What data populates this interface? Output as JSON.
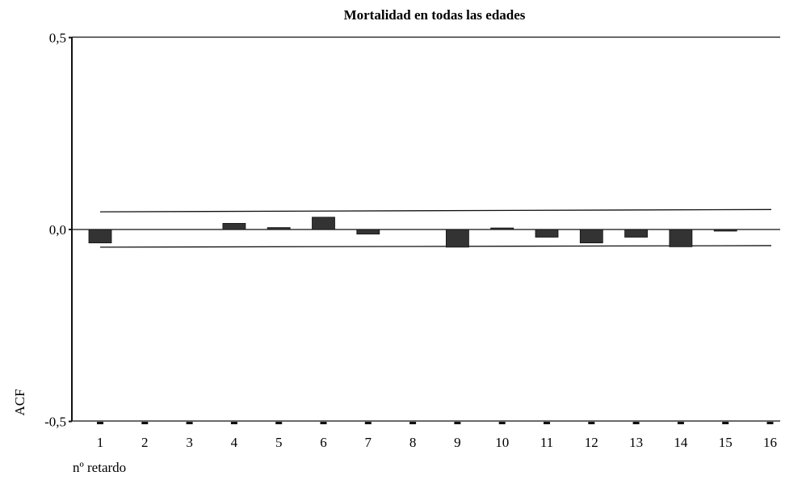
{
  "chart_data": {
    "type": "bar",
    "title": "Mortalidad en todas las edades",
    "ylabel": "ACF",
    "xlabel": "nº retardo",
    "ylim": [
      -0.5,
      0.5
    ],
    "yticks": [
      "0,5",
      "0,0",
      "-0,5"
    ],
    "categories": [
      "1",
      "2",
      "3",
      "4",
      "5",
      "6",
      "7",
      "8",
      "9",
      "10",
      "11",
      "12",
      "13",
      "14",
      "15",
      "16"
    ],
    "series": [
      {
        "values": [
          -0.035,
          0.0,
          0.0,
          0.016,
          0.005,
          0.032,
          -0.012,
          0.0,
          -0.046,
          0.004,
          -0.02,
          -0.035,
          -0.02,
          -0.045,
          -0.003,
          0.0
        ]
      }
    ],
    "confidence_limits": {
      "upper": [
        0.046,
        0.052
      ],
      "lower": [
        -0.046,
        -0.042
      ]
    },
    "bar_color": "#333333",
    "grid": false
  }
}
